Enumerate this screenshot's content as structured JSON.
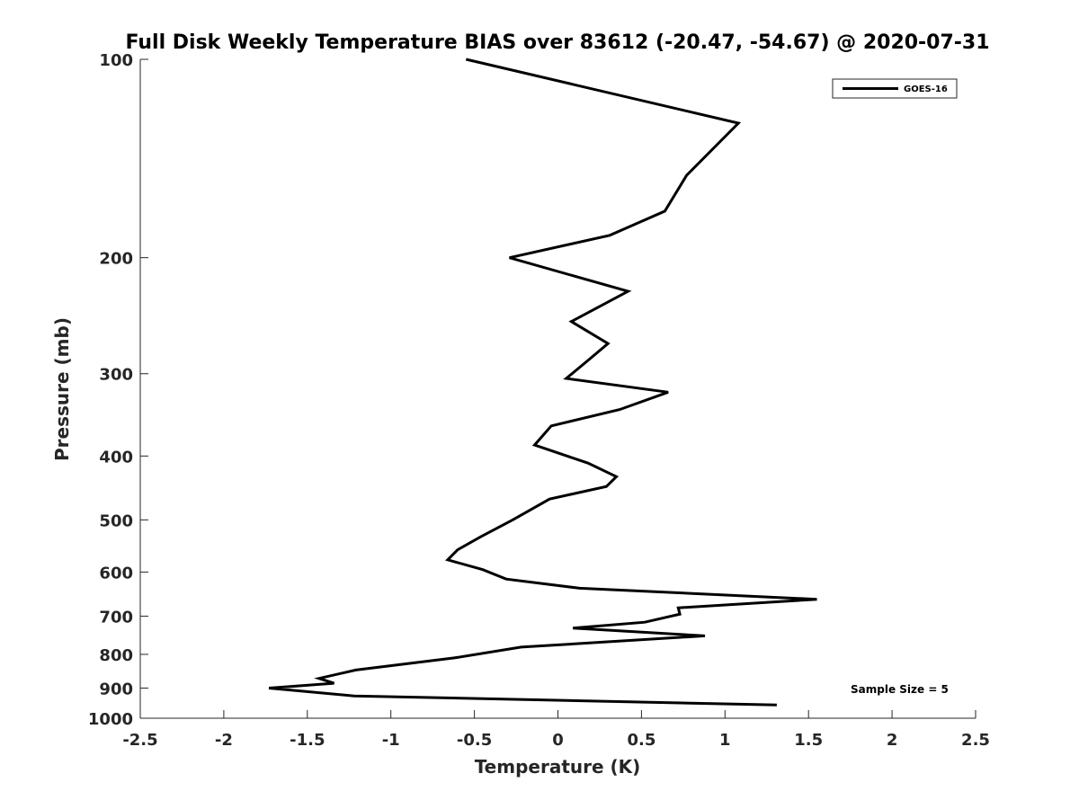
{
  "chart_data": {
    "type": "line",
    "title": "Full Disk Weekly Temperature BIAS over 83612 (-20.47, -54.67) @ 2020-07-31",
    "xlabel": "Temperature (K)",
    "ylabel": "Pressure (mb)",
    "xlim": [
      -2.5,
      2.5
    ],
    "ylim": [
      100,
      1000
    ],
    "yscale": "log",
    "y_reversed": true,
    "x_ticks": [
      -2.5,
      -2,
      -1.5,
      -1,
      -0.5,
      0,
      0.5,
      1,
      1.5,
      2,
      2.5
    ],
    "x_tick_labels": [
      "-2.5",
      "-2",
      "-1.5",
      "-1",
      "-0.5",
      "0",
      "0.5",
      "1",
      "1.5",
      "2",
      "2.5"
    ],
    "y_ticks": [
      100,
      200,
      300,
      400,
      500,
      600,
      700,
      800,
      900,
      1000
    ],
    "y_tick_labels": [
      "100",
      "200",
      "300",
      "400",
      "500",
      "600",
      "700",
      "800",
      "900",
      "1000"
    ],
    "legend": {
      "position": "top-right",
      "entries": [
        "GOES-16"
      ]
    },
    "annotation": "Sample Size = 5",
    "series": [
      {
        "name": "GOES-16",
        "color": "#000000",
        "x": [
          -0.55,
          1.08,
          0.77,
          0.64,
          0.31,
          -0.29,
          0.42,
          0.08,
          0.3,
          0.19,
          0.05,
          0.66,
          0.37,
          -0.04,
          -0.14,
          0.18,
          0.35,
          0.29,
          -0.05,
          -0.27,
          -0.46,
          -0.6,
          -0.66,
          -0.45,
          -0.31,
          0.13,
          1.55,
          0.72,
          0.73,
          0.52,
          0.09,
          0.88,
          -0.22,
          -0.62,
          -1.21,
          -1.43,
          -1.34,
          -1.73,
          -1.22,
          1.31
        ],
        "y": [
          100,
          125,
          150,
          170,
          185,
          200,
          225,
          250,
          270,
          285,
          305,
          320,
          340,
          360,
          385,
          410,
          430,
          445,
          465,
          500,
          530,
          555,
          575,
          595,
          615,
          635,
          660,
          680,
          695,
          715,
          730,
          750,
          780,
          810,
          845,
          870,
          885,
          900,
          925,
          955
        ]
      }
    ]
  }
}
